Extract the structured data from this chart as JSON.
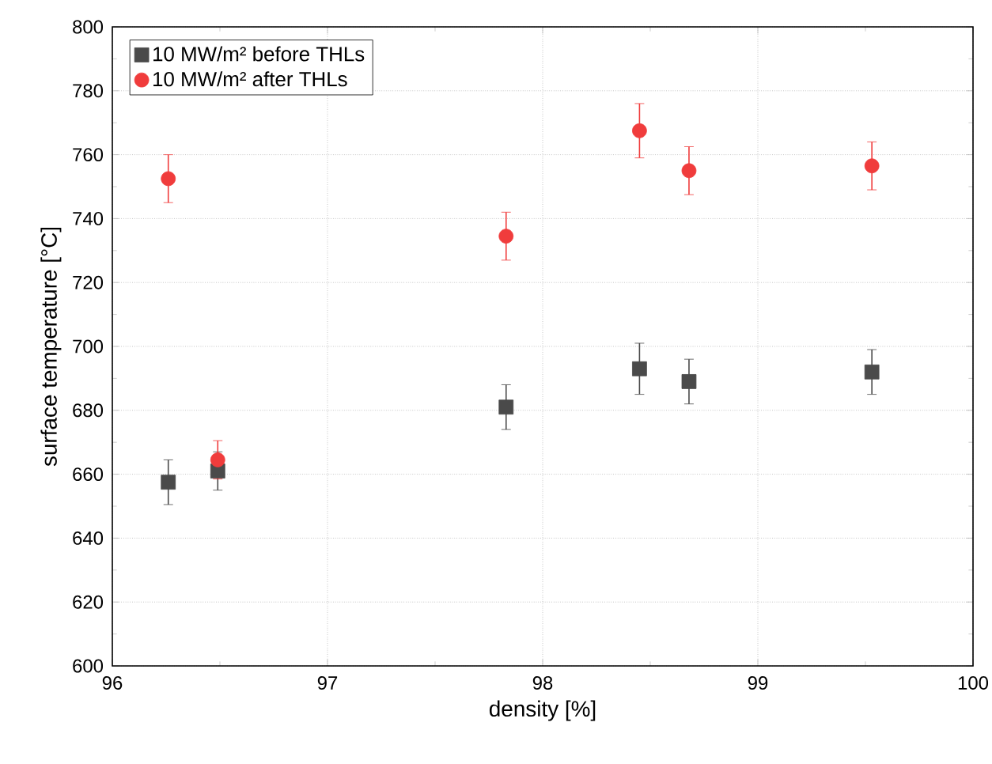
{
  "chart_data": {
    "type": "scatter",
    "xlabel": "density [%]",
    "ylabel": "surface temperature [°C]",
    "x": [
      96.26,
      96.49,
      97.83,
      98.45,
      98.68,
      99.53
    ],
    "series": [
      {
        "name": "10 MW/m² before THLs",
        "color": "#4a4a4a",
        "marker": "square",
        "values": [
          657.5,
          661,
          681,
          693,
          689,
          692
        ],
        "errors": [
          7,
          6,
          7,
          8,
          7,
          7
        ]
      },
      {
        "name": "10 MW/m² after THLs",
        "color": "#f03c3c",
        "marker": "circle",
        "values": [
          752.5,
          664.5,
          734.5,
          767.5,
          755,
          756.5
        ],
        "errors": [
          7.5,
          6,
          7.5,
          8.5,
          7.5,
          7.5
        ]
      }
    ],
    "xlim": [
      96,
      100
    ],
    "xticks": [
      96,
      97,
      98,
      99,
      100
    ],
    "ylim": [
      600,
      800
    ],
    "yticks": [
      600,
      620,
      640,
      660,
      680,
      700,
      720,
      740,
      760,
      780,
      800
    ],
    "grid": true,
    "legend": "top left"
  }
}
